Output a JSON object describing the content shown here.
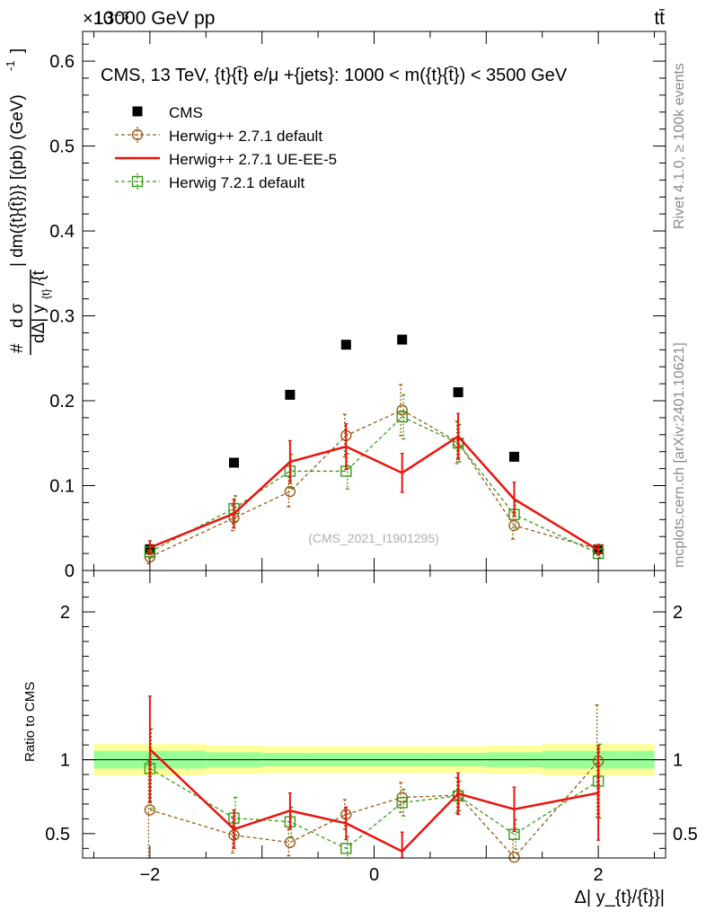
{
  "header": {
    "energy_label": "13000 GeV pp",
    "process_label": "tt̄",
    "exponent_label": "×10⁻³"
  },
  "side_labels": {
    "rivet": "Rivet 4.1.0, ≥ 100k events",
    "mcplots": "mcplots.cern.ch [arXiv:2401.10621]"
  },
  "chart_data": [
    {
      "type": "scatter",
      "panel": "main",
      "title": "CMS, 13 TeV, {t}{t̄} e/μ +{jets}: 1000 < m({t}{t̄}) < 3500 GeV",
      "xlabel": "Δ| y_{t}/{t̄}}|",
      "ylabel": "# d σ / dΔ| y_{t}/{t̄ }| dm({t}{t̄}) [(pb) (GeV)^-1]",
      "ylabel_parts": {
        "lead": "#",
        "numerator": "d σ",
        "tail": "| dm({t}{t̄})} [(pb) (GeV)",
        "tail_sup": "-1",
        "tail_close": "]",
        "denominator": "dΔ| y",
        "denominator_sub": "{t}",
        "denominator_end": "/{t̄"
      },
      "xlim": [
        -2.6,
        2.6
      ],
      "ylim": [
        0,
        0.635
      ],
      "y_scale_note": "values ×10^-3",
      "yticks": [
        0,
        0.1,
        0.2,
        0.3,
        0.4,
        0.5,
        0.6
      ],
      "ytick_labels": [
        "0",
        "0.1",
        "0.2",
        "0.3",
        "0.4",
        "0.5",
        "0.6"
      ],
      "watermark": "(CMS_2021_I1901295)",
      "x": [
        -2.0,
        -1.25,
        -0.75,
        -0.25,
        0.25,
        0.75,
        1.25,
        2.0
      ],
      "series": [
        {
          "name": "CMS",
          "style": "data",
          "color": "#000000",
          "values": [
            0.025,
            0.127,
            0.207,
            0.266,
            0.272,
            0.21,
            0.134,
            0.025
          ]
        },
        {
          "name": "Herwig++ 2.7.1 default",
          "style": "circle-dashed",
          "color": "#9a5a14",
          "values": [
            0.016,
            0.062,
            0.093,
            0.159,
            0.189,
            0.151,
            0.053,
            0.025
          ],
          "errors": [
            0.008,
            0.015,
            0.018,
            0.025,
            0.03,
            0.025,
            0.016,
            0.005
          ]
        },
        {
          "name": "Herwig++ 2.7.1 UE-EE-5",
          "style": "line",
          "color": "#e8150e",
          "values": [
            0.027,
            0.067,
            0.128,
            0.146,
            0.115,
            0.158,
            0.084,
            0.024
          ],
          "errors": [
            0.008,
            0.017,
            0.025,
            0.027,
            0.023,
            0.027,
            0.02,
            0.006
          ]
        },
        {
          "name": "Herwig 7.2.1 default",
          "style": "square-dashed",
          "color": "#3a9a14",
          "values": [
            0.022,
            0.073,
            0.117,
            0.117,
            0.181,
            0.15,
            0.066,
            0.02
          ],
          "errors": [
            0.007,
            0.015,
            0.02,
            0.021,
            0.026,
            0.022,
            0.016,
            0.005
          ]
        }
      ]
    },
    {
      "type": "scatter",
      "panel": "ratio",
      "ylabel": "Ratio to CMS",
      "xlim": [
        -2.6,
        2.6
      ],
      "ylim": [
        0.335,
        2.28
      ],
      "yticks": [
        0.5,
        1,
        2
      ],
      "ytick_labels": [
        "0.5",
        "1",
        "2"
      ],
      "xticks": [
        -2,
        0,
        2
      ],
      "xtick_labels": [
        "−2",
        "0",
        "2"
      ],
      "bins": [
        -2.5,
        -1.5,
        -1.0,
        -0.5,
        0.0,
        0.5,
        1.0,
        1.5,
        2.5
      ],
      "band_yellow": [
        [
          0.895,
          1.105
        ],
        [
          0.905,
          1.095
        ],
        [
          0.91,
          1.09
        ],
        [
          0.91,
          1.09
        ],
        [
          0.91,
          1.09
        ],
        [
          0.91,
          1.09
        ],
        [
          0.905,
          1.095
        ],
        [
          0.895,
          1.105
        ]
      ],
      "band_green": [
        [
          0.94,
          1.06
        ],
        [
          0.95,
          1.05
        ],
        [
          0.955,
          1.045
        ],
        [
          0.955,
          1.045
        ],
        [
          0.955,
          1.045
        ],
        [
          0.955,
          1.045
        ],
        [
          0.95,
          1.05
        ],
        [
          0.94,
          1.06
        ]
      ],
      "x": [
        -2.0,
        -1.25,
        -0.75,
        -0.25,
        0.25,
        0.75,
        1.25,
        2.0
      ],
      "series": [
        {
          "name": "Herwig++ 2.7.1 default",
          "style": "circle-dashed",
          "color": "#9a5a14",
          "values": [
            0.66,
            0.49,
            0.44,
            0.63,
            0.745,
            0.76,
            0.34,
            0.99
          ],
          "errors": [
            0.33,
            0.12,
            0.09,
            0.1,
            0.1,
            0.12,
            0.12,
            0.38
          ]
        },
        {
          "name": "Herwig++ 2.7.1 UE-EE-5",
          "style": "line",
          "color": "#e8150e",
          "values": [
            1.07,
            0.53,
            0.655,
            0.57,
            0.38,
            0.77,
            0.665,
            0.775
          ],
          "errors": [
            0.36,
            0.13,
            0.12,
            0.11,
            0.13,
            0.14,
            0.15,
            0.32
          ]
        },
        {
          "name": "Herwig 7.2.1 default",
          "style": "square-dashed",
          "color": "#3a9a14",
          "values": [
            0.94,
            0.605,
            0.58,
            0.4,
            0.71,
            0.755,
            0.495,
            0.855
          ],
          "errors": [
            0.27,
            0.14,
            0.1,
            0.08,
            0.09,
            0.1,
            0.1,
            0.25
          ]
        }
      ]
    }
  ]
}
